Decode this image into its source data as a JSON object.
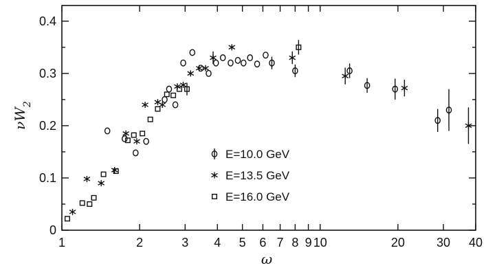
{
  "chart_data": {
    "type": "scatter",
    "title": "",
    "xlabel": "ω",
    "ylabel": "νW2",
    "xscale": "log",
    "xlim": [
      1,
      40
    ],
    "ylim": [
      0,
      0.43
    ],
    "grid": false,
    "legend_position": "lower-center",
    "x_tick_labels": [
      "1",
      "2",
      "3",
      "4",
      "5",
      "6",
      "7",
      "8",
      "9",
      "10",
      "20",
      "30",
      "40"
    ],
    "x_tick_values": [
      1,
      2,
      3,
      4,
      5,
      6,
      7,
      8,
      9,
      10,
      20,
      30,
      40
    ],
    "y_tick_labels": [
      "0",
      "0.1",
      "0.2",
      "0.3",
      "0.4"
    ],
    "y_tick_values": [
      0,
      0.1,
      0.2,
      0.3,
      0.4
    ],
    "series": [
      {
        "name": "E=10.0 GeV",
        "marker": "circle",
        "points": [
          {
            "x": 1.5,
            "y": 0.19
          },
          {
            "x": 1.75,
            "y": 0.175
          },
          {
            "x": 1.93,
            "y": 0.148
          },
          {
            "x": 2.12,
            "y": 0.17
          },
          {
            "x": 2.5,
            "y": 0.25
          },
          {
            "x": 2.6,
            "y": 0.27
          },
          {
            "x": 2.75,
            "y": 0.24
          },
          {
            "x": 2.95,
            "y": 0.32
          },
          {
            "x": 3.2,
            "y": 0.34
          },
          {
            "x": 3.45,
            "y": 0.31
          },
          {
            "x": 3.7,
            "y": 0.3
          },
          {
            "x": 3.95,
            "y": 0.32
          },
          {
            "x": 4.2,
            "y": 0.33
          },
          {
            "x": 4.5,
            "y": 0.32
          },
          {
            "x": 4.8,
            "y": 0.325
          },
          {
            "x": 5.05,
            "y": 0.32
          },
          {
            "x": 5.35,
            "y": 0.33
          },
          {
            "x": 5.7,
            "y": 0.318
          },
          {
            "x": 6.15,
            "y": 0.335
          },
          {
            "x": 6.5,
            "y": 0.32,
            "err": 0.012
          },
          {
            "x": 8.0,
            "y": 0.305,
            "err": 0.012
          },
          {
            "x": 13.0,
            "y": 0.305,
            "err": 0.014
          },
          {
            "x": 15.2,
            "y": 0.277,
            "err": 0.014
          },
          {
            "x": 19.5,
            "y": 0.27,
            "err": 0.02
          },
          {
            "x": 28.5,
            "y": 0.21,
            "err": 0.022
          },
          {
            "x": 31.5,
            "y": 0.23,
            "err": 0.04
          }
        ]
      },
      {
        "name": "E=13.5 GeV",
        "marker": "asterisk",
        "points": [
          {
            "x": 1.1,
            "y": 0.035
          },
          {
            "x": 1.25,
            "y": 0.098
          },
          {
            "x": 1.42,
            "y": 0.09
          },
          {
            "x": 1.6,
            "y": 0.115
          },
          {
            "x": 1.77,
            "y": 0.185
          },
          {
            "x": 1.95,
            "y": 0.17
          },
          {
            "x": 2.1,
            "y": 0.24
          },
          {
            "x": 2.35,
            "y": 0.245
          },
          {
            "x": 2.45,
            "y": 0.24
          },
          {
            "x": 2.8,
            "y": 0.275
          },
          {
            "x": 2.95,
            "y": 0.278
          },
          {
            "x": 3.15,
            "y": 0.3
          },
          {
            "x": 3.4,
            "y": 0.31
          },
          {
            "x": 3.6,
            "y": 0.31
          },
          {
            "x": 3.85,
            "y": 0.33,
            "err": 0.012
          },
          {
            "x": 4.55,
            "y": 0.35
          },
          {
            "x": 7.8,
            "y": 0.33,
            "err": 0.012
          },
          {
            "x": 12.5,
            "y": 0.295,
            "err": 0.016
          },
          {
            "x": 21.2,
            "y": 0.272,
            "err": 0.016
          },
          {
            "x": 37.5,
            "y": 0.2,
            "err": 0.035
          }
        ]
      },
      {
        "name": "E=16.0 GeV",
        "marker": "square",
        "points": [
          {
            "x": 1.05,
            "y": 0.022
          },
          {
            "x": 1.2,
            "y": 0.052
          },
          {
            "x": 1.28,
            "y": 0.05
          },
          {
            "x": 1.33,
            "y": 0.062
          },
          {
            "x": 1.45,
            "y": 0.107
          },
          {
            "x": 1.62,
            "y": 0.113
          },
          {
            "x": 1.8,
            "y": 0.172
          },
          {
            "x": 1.9,
            "y": 0.182
          },
          {
            "x": 2.05,
            "y": 0.185
          },
          {
            "x": 2.2,
            "y": 0.212
          },
          {
            "x": 2.35,
            "y": 0.232
          },
          {
            "x": 2.55,
            "y": 0.26
          },
          {
            "x": 2.7,
            "y": 0.258
          },
          {
            "x": 2.85,
            "y": 0.27
          },
          {
            "x": 3.05,
            "y": 0.27,
            "err": 0.012
          },
          {
            "x": 8.25,
            "y": 0.35,
            "err": 0.014
          }
        ]
      }
    ]
  }
}
